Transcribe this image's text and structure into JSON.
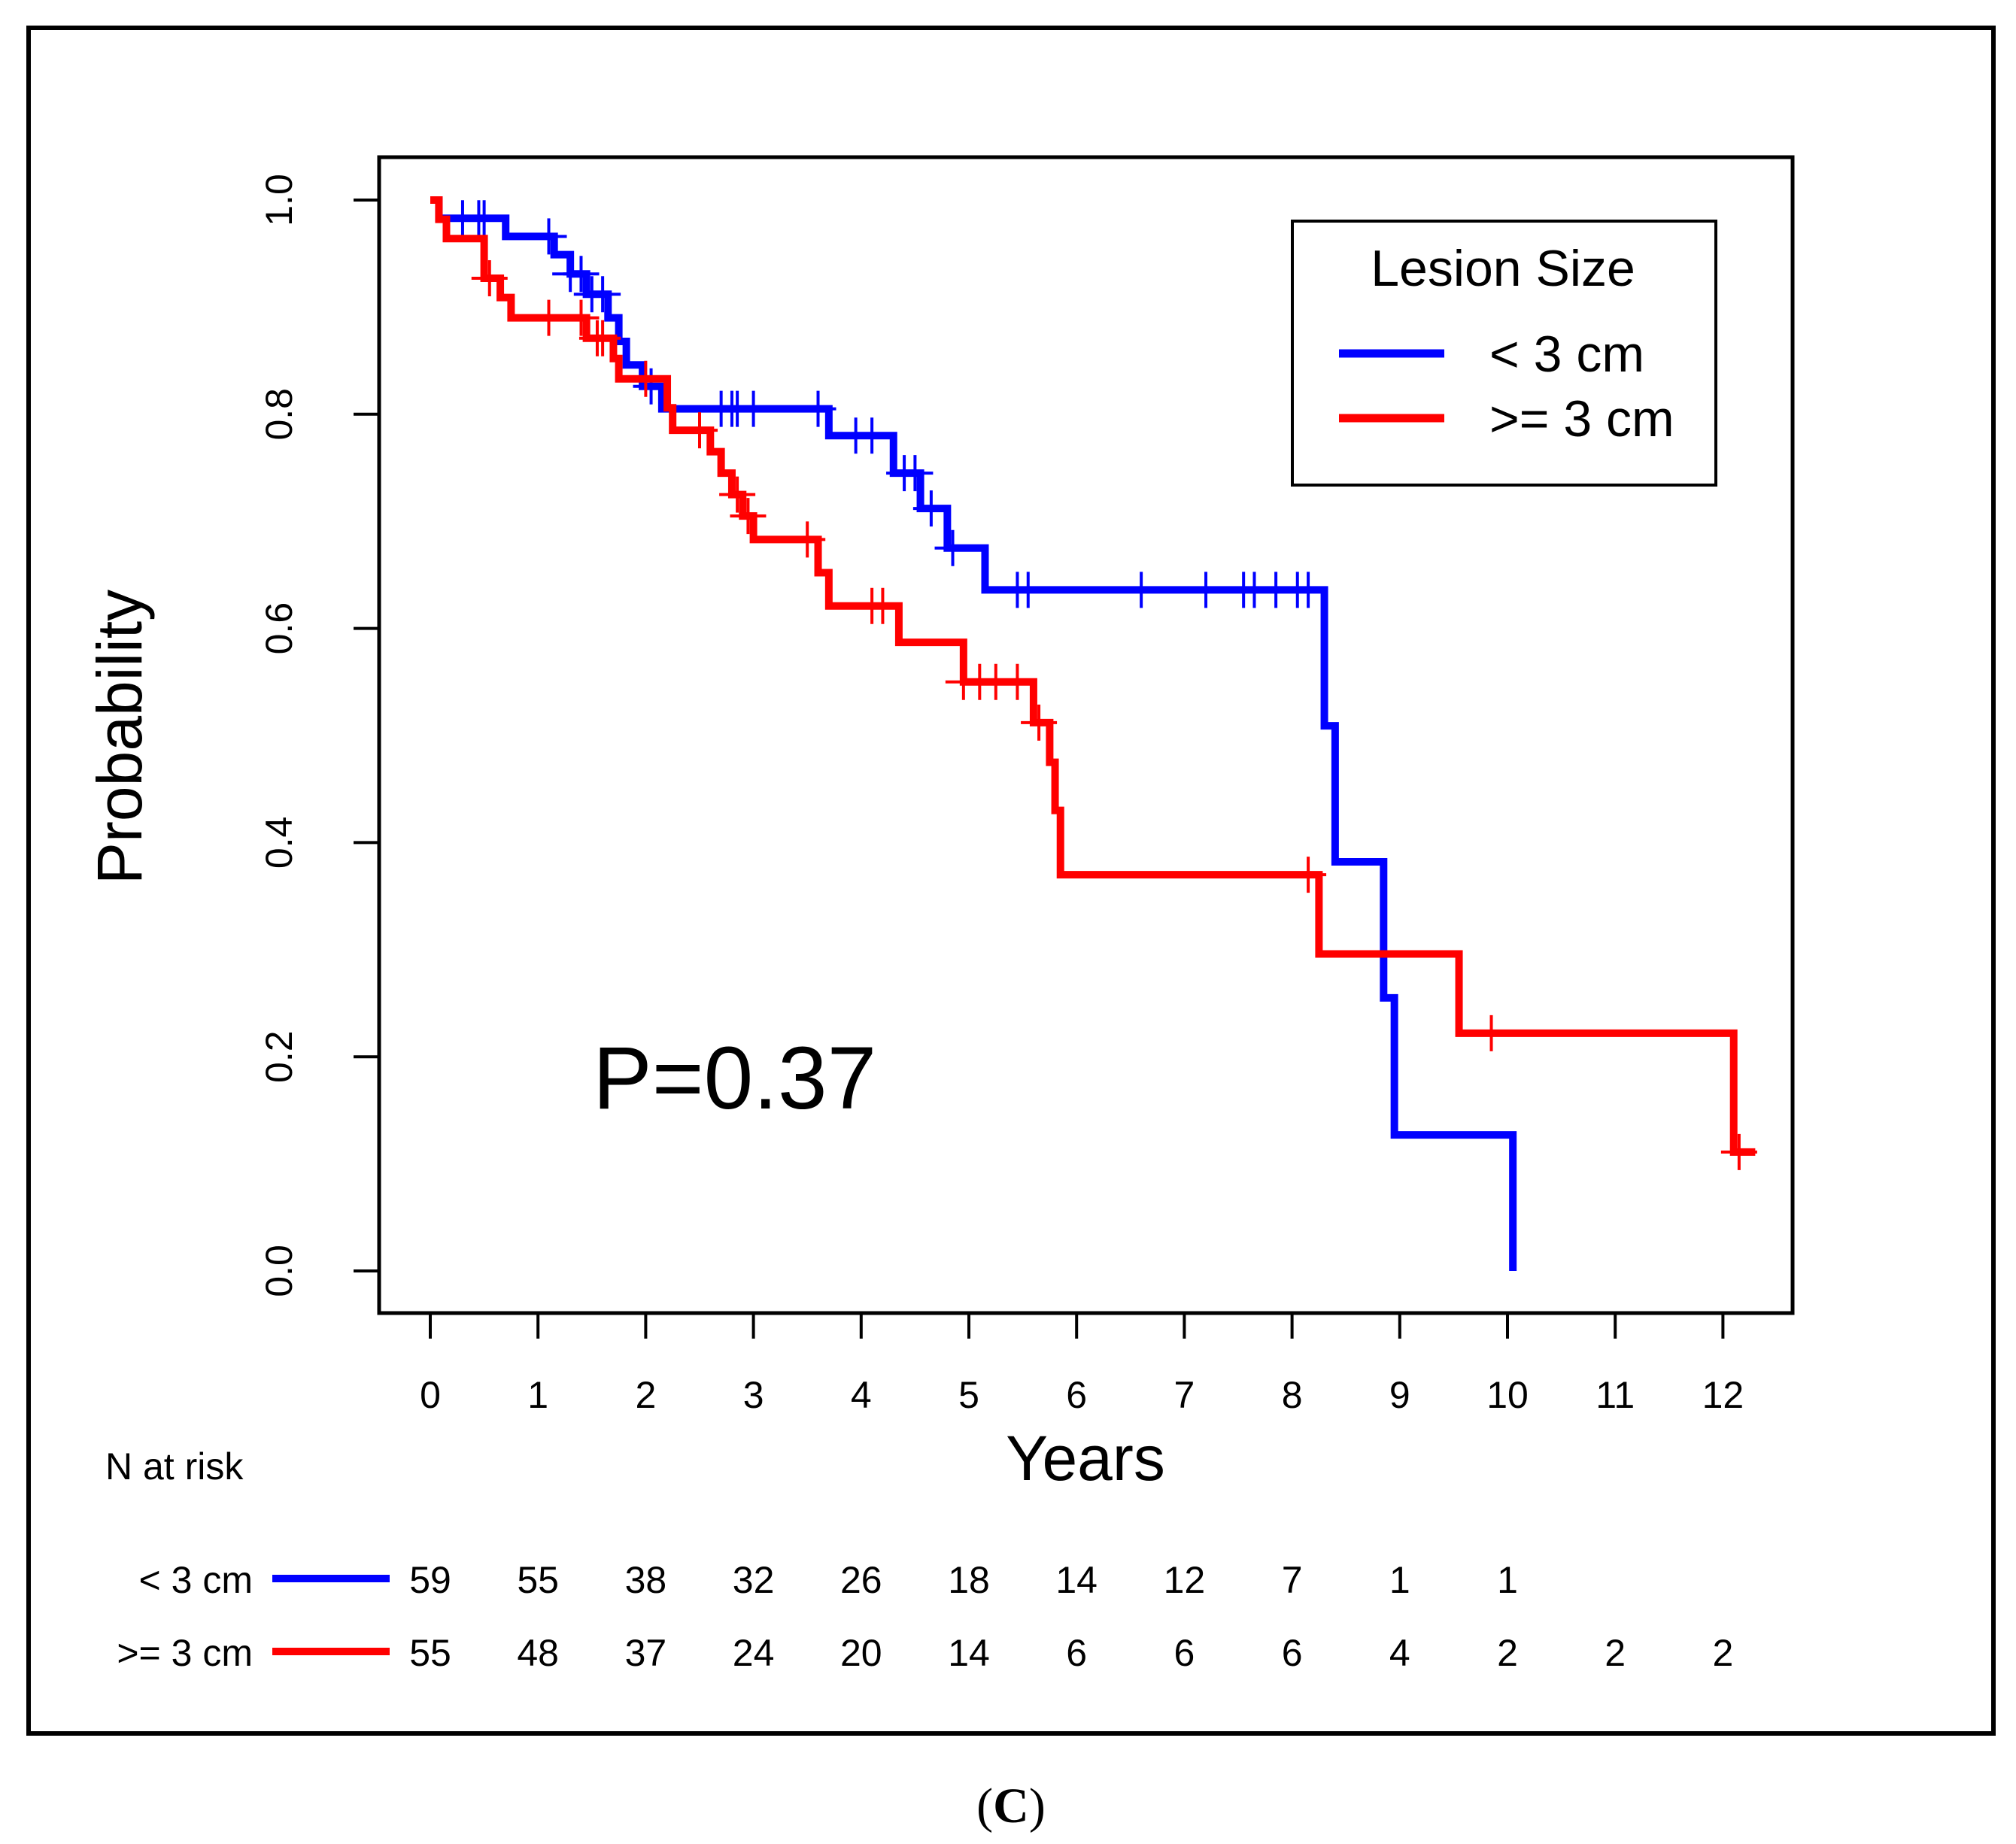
{
  "chart_data": {
    "type": "line",
    "subtype": "kaplan-meier",
    "xlabel": "Years",
    "ylabel": "Probability",
    "xlim": [
      -0.5,
      12.6
    ],
    "ylim": [
      -0.04,
      1.04
    ],
    "xticks": [
      0,
      1,
      2,
      3,
      4,
      5,
      6,
      7,
      8,
      9,
      10,
      11,
      12
    ],
    "yticks": [
      0.0,
      0.2,
      0.4,
      0.6,
      0.8,
      1.0
    ],
    "ytick_labels": [
      "0.0",
      "0.2",
      "0.4",
      "0.6",
      "0.8",
      "1.0"
    ],
    "annotation": "P=0.37",
    "panel_label_open": "(",
    "panel_label_letter": "C",
    "panel_label_close": ")",
    "legend": {
      "title": "Lesion Size",
      "placement": "top-right",
      "entries": [
        "< 3 cm",
        ">= 3 cm"
      ]
    },
    "series": [
      {
        "name": "< 3 cm",
        "color": "#0000ff",
        "steps": [
          [
            0,
            1.0
          ],
          [
            0.08,
            0.983
          ],
          [
            0.7,
            0.966
          ],
          [
            1.15,
            0.949
          ],
          [
            1.3,
            0.931
          ],
          [
            1.45,
            0.912
          ],
          [
            1.65,
            0.89
          ],
          [
            1.75,
            0.868
          ],
          [
            1.82,
            0.846
          ],
          [
            1.97,
            0.826
          ],
          [
            2.15,
            0.805
          ],
          [
            3.7,
            0.78
          ],
          [
            4.3,
            0.745
          ],
          [
            4.55,
            0.712
          ],
          [
            4.8,
            0.675
          ],
          [
            5.15,
            0.636
          ],
          [
            8.3,
            0.509
          ],
          [
            8.4,
            0.382
          ],
          [
            8.85,
            0.255
          ],
          [
            8.95,
            0.127
          ],
          [
            10.05,
            0.0
          ]
        ],
        "end_x": 10.05,
        "censor_x": [
          0.3,
          0.45,
          0.5,
          1.1,
          1.3,
          1.4,
          1.5,
          1.6,
          2.05,
          2.85,
          2.7,
          2.8,
          3.0,
          3.6,
          3.95,
          4.1,
          4.4,
          4.5,
          4.65,
          4.85,
          5.45,
          5.55,
          6.6,
          7.2,
          7.55,
          7.65,
          7.85,
          8.05,
          8.15
        ]
      },
      {
        "name": ">= 3 cm",
        "color": "#ff0000",
        "steps": [
          [
            0,
            1.0
          ],
          [
            0.08,
            0.982
          ],
          [
            0.15,
            0.964
          ],
          [
            0.5,
            0.927
          ],
          [
            0.65,
            0.909
          ],
          [
            0.75,
            0.89
          ],
          [
            1.45,
            0.871
          ],
          [
            1.7,
            0.852
          ],
          [
            1.75,
            0.833
          ],
          [
            2.2,
            0.806
          ],
          [
            2.25,
            0.785
          ],
          [
            2.6,
            0.765
          ],
          [
            2.7,
            0.745
          ],
          [
            2.8,
            0.725
          ],
          [
            2.9,
            0.705
          ],
          [
            3.0,
            0.683
          ],
          [
            3.6,
            0.652
          ],
          [
            3.7,
            0.621
          ],
          [
            4.35,
            0.587
          ],
          [
            4.95,
            0.55
          ],
          [
            5.6,
            0.512
          ],
          [
            5.75,
            0.475
          ],
          [
            5.8,
            0.43
          ],
          [
            5.85,
            0.37
          ],
          [
            8.25,
            0.296
          ],
          [
            9.55,
            0.222
          ],
          [
            12.1,
            0.111
          ]
        ],
        "end_x": 12.3,
        "censor_x": [
          0.55,
          1.1,
          1.4,
          1.55,
          1.6,
          2.0,
          2.5,
          2.85,
          2.95,
          3.5,
          4.1,
          4.2,
          4.95,
          5.1,
          5.25,
          5.45,
          5.65,
          8.15,
          9.85,
          12.15
        ]
      }
    ],
    "risk_table": {
      "title": "N at risk",
      "rows": [
        {
          "label": "< 3 cm",
          "color": "#0000ff",
          "counts": [
            "59",
            "55",
            "38",
            "32",
            "26",
            "18",
            "14",
            "12",
            "7",
            "1",
            "1"
          ]
        },
        {
          "label": ">= 3 cm",
          "color": "#ff0000",
          "counts": [
            "55",
            "48",
            "37",
            "24",
            "20",
            "14",
            "6",
            "6",
            "6",
            "4",
            "2",
            "2",
            "2"
          ]
        }
      ]
    }
  }
}
